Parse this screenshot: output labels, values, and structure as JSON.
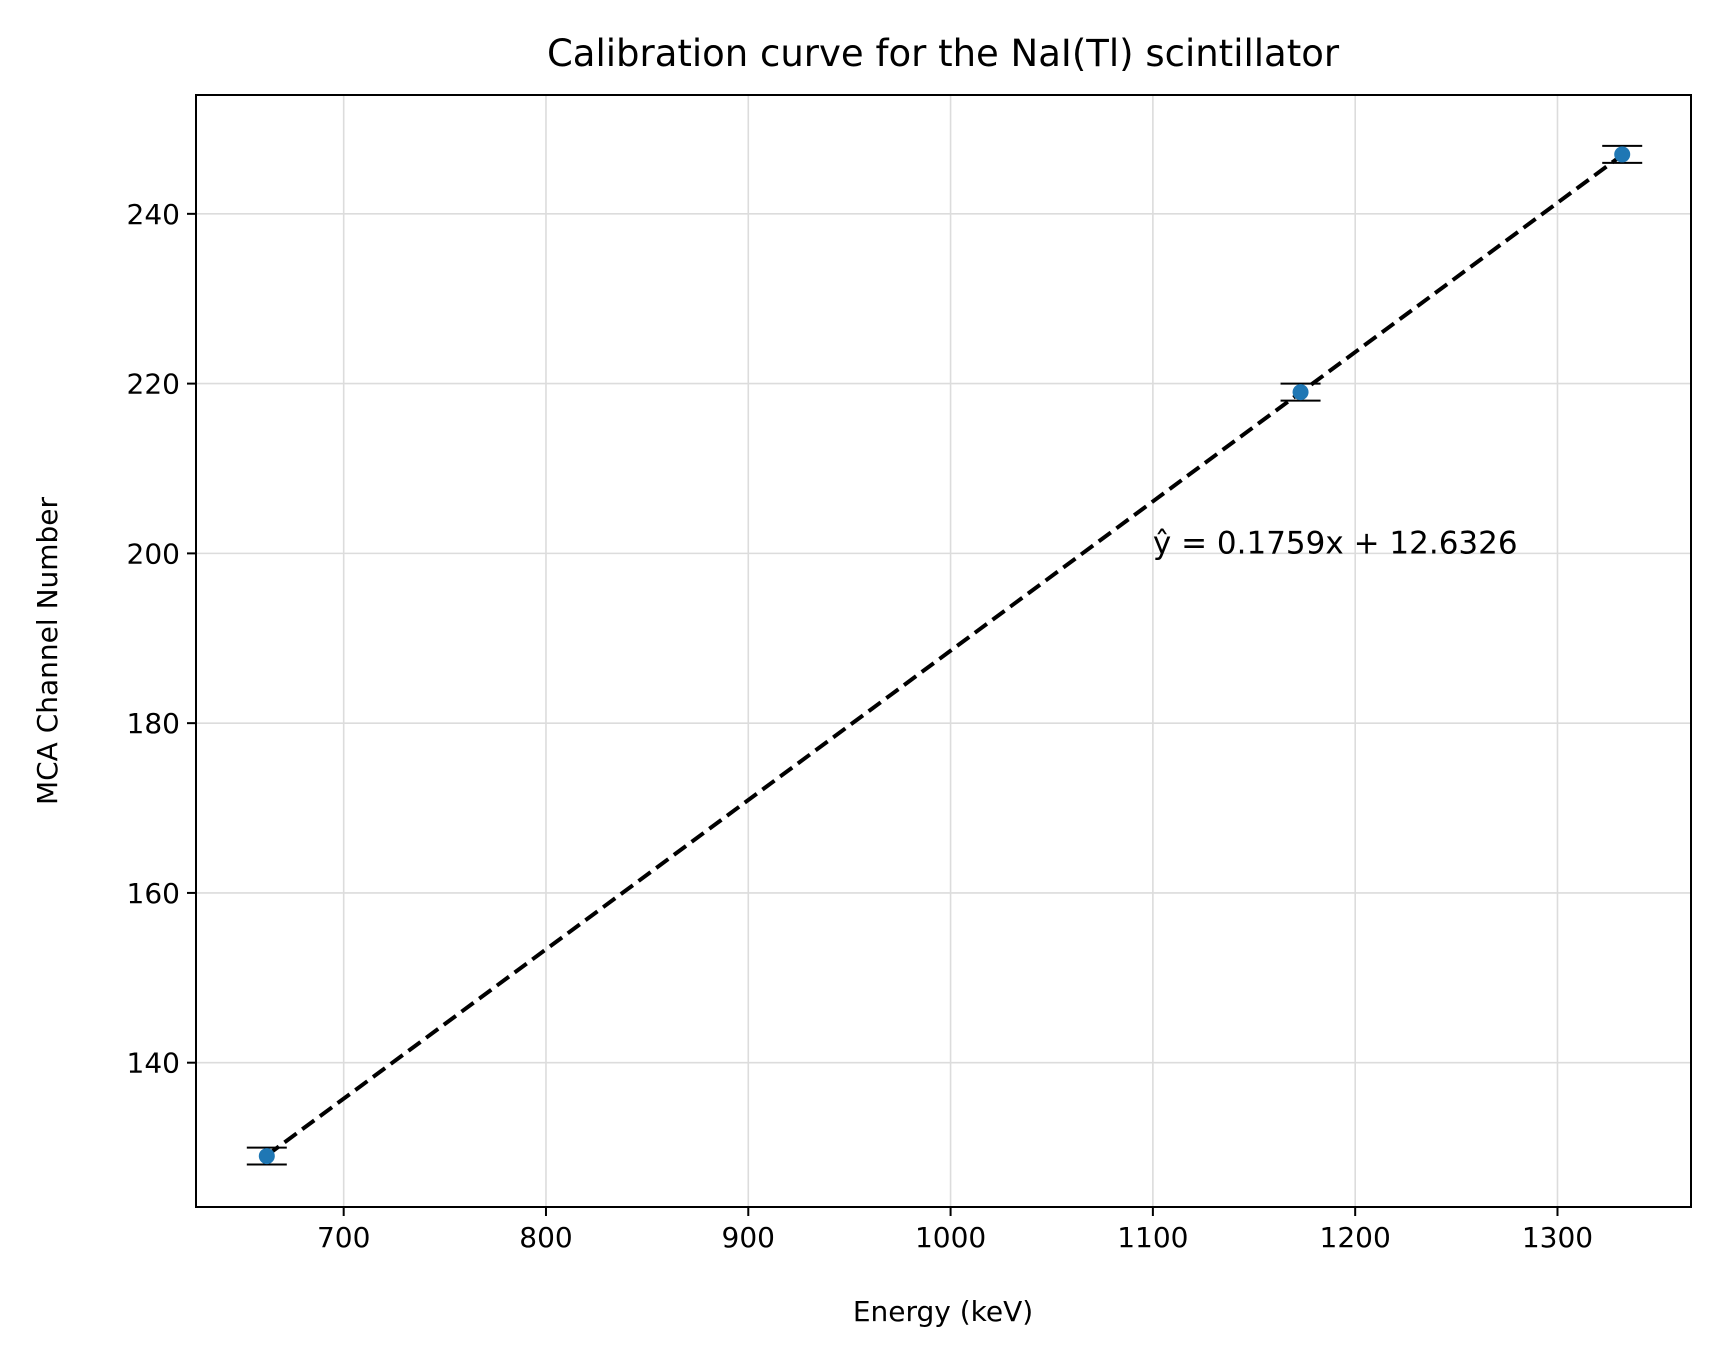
{
  "chart_data": {
    "type": "scatter",
    "title": "Calibration curve for the NaI(Tl) scintillator",
    "xlabel": "Energy (keV)",
    "ylabel": "MCA Channel Number",
    "xlim": [
      627,
      1366
    ],
    "ylim": [
      123,
      254
    ],
    "x_ticks": [
      700,
      800,
      900,
      1000,
      1100,
      1200,
      1300
    ],
    "y_ticks": [
      140,
      160,
      180,
      200,
      220,
      240
    ],
    "grid": true,
    "points": [
      {
        "x": 662,
        "y": 129,
        "yerr": 1
      },
      {
        "x": 1173,
        "y": 219,
        "yerr": 1
      },
      {
        "x": 1332,
        "y": 247,
        "yerr": 1
      }
    ],
    "point_color": "#1f77b4",
    "errorbar_color": "#000000",
    "fit_line": {
      "slope": 0.1759,
      "intercept": 12.6326,
      "x_range": [
        662,
        1332
      ],
      "style": "dashed",
      "color": "#000000"
    },
    "annotation": {
      "text": "ŷ = 0.1759x + 12.6326",
      "x": 1100,
      "y": 200
    }
  }
}
